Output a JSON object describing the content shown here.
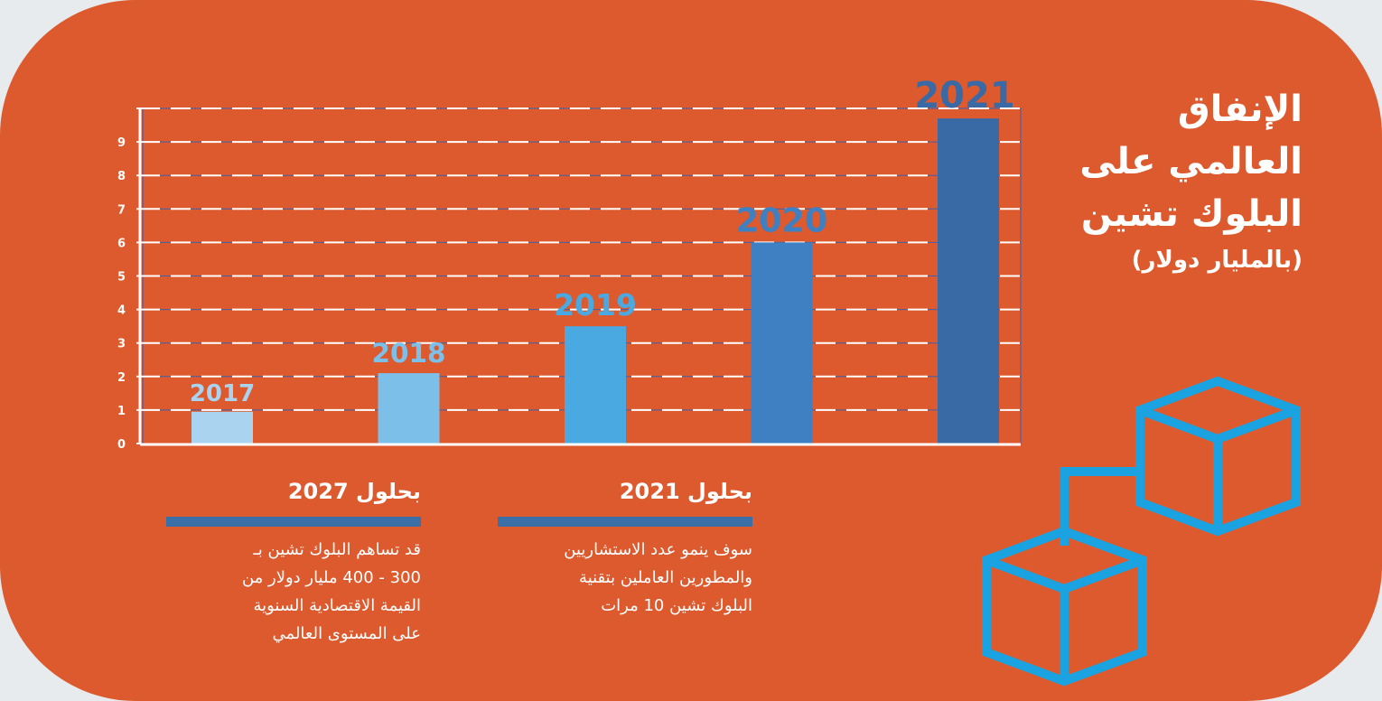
{
  "title": {
    "lines": [
      "الإنفاق",
      "العالمي على",
      "البلوك تشين"
    ],
    "unit": "(بالمليار دولار)"
  },
  "chart_data": {
    "type": "bar",
    "categories": [
      "2017",
      "2018",
      "2019",
      "2020",
      "2021"
    ],
    "values": [
      0.95,
      2.1,
      3.5,
      6.0,
      9.7
    ],
    "bar_colors": [
      "#a9d3ee",
      "#7cc0ea",
      "#4aa9e1",
      "#3e80c2",
      "#3a6aa5"
    ],
    "data_labels": [
      "2017",
      "2018",
      "2019",
      "2020",
      "2021"
    ],
    "label_colors": [
      "#a9d3ee",
      "#7cc0ea",
      "#4aa9e1",
      "#3e80c2",
      "#3a6aa5"
    ],
    "yticks": [
      "0",
      "1",
      "2",
      "3",
      "4",
      "5",
      "6",
      "7",
      "8",
      "9"
    ],
    "ylim": [
      0,
      10
    ],
    "grid": true,
    "xlabel": "",
    "ylabel": ""
  },
  "info": [
    {
      "heading": "بحلول 2021",
      "lines": [
        "سوف ينمو عدد الاستشاريين",
        "والمطورين العاملين بتقنية",
        "البلوك تشين 10 مرات"
      ]
    },
    {
      "heading": "بحلول 2027",
      "lines": [
        "قد تساهم البلوك تشين بـ",
        "300 - 400 مليار دولار من",
        "القيمة الاقتصادية السنوية",
        "على المستوى العالمي"
      ]
    }
  ],
  "colors": {
    "background": "#dc5a2d",
    "accent": "#3b6fa8",
    "icon": "#1aa3e0"
  },
  "icons": [
    "blockchain-cubes-icon"
  ]
}
